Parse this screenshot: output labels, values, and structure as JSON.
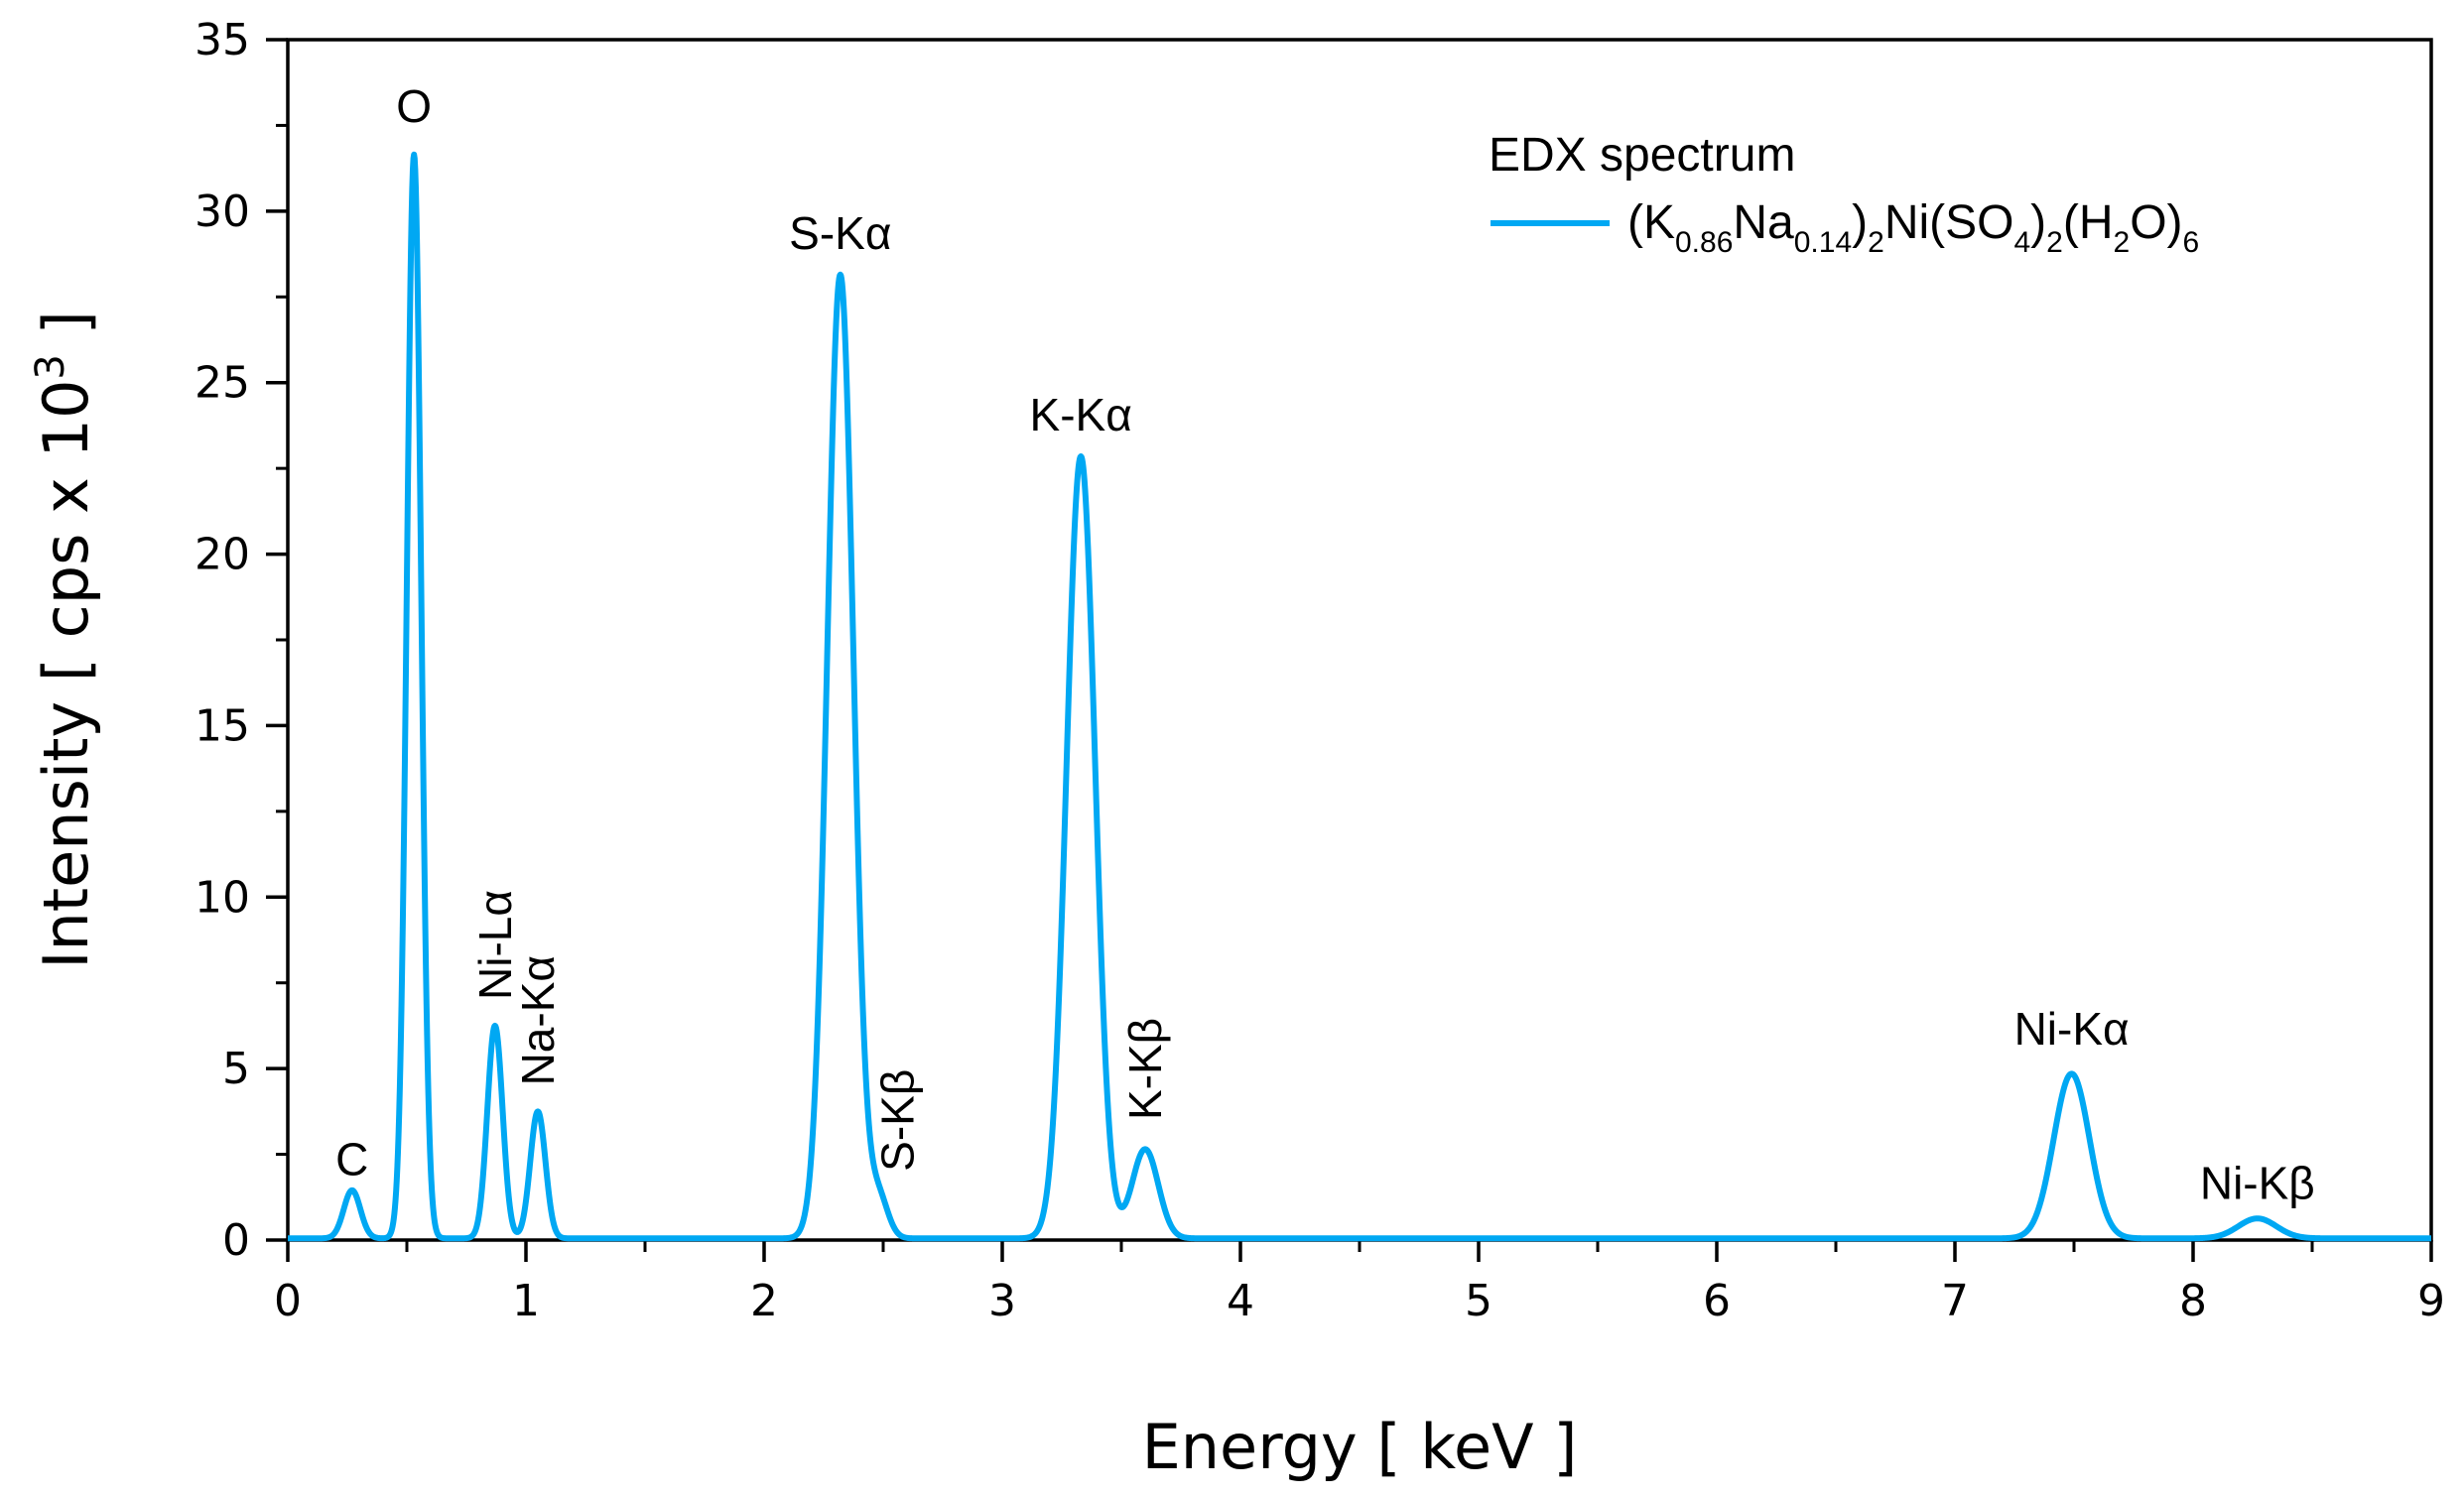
{
  "chart_data": {
    "type": "line",
    "xlabel": "Energy [ keV ]",
    "ylabel": "Intensity [ cps x 10",
    "ylabel_sup": "3",
    "ylabel_end": " ]",
    "xlim": [
      0,
      9
    ],
    "ylim": [
      0,
      35
    ],
    "x_ticks": [
      "0",
      "1",
      "2",
      "3",
      "4",
      "5",
      "6",
      "7",
      "8",
      "9"
    ],
    "y_ticks": [
      "0",
      "5",
      "10",
      "15",
      "20",
      "25",
      "30",
      "35"
    ],
    "grid": false,
    "legend": {
      "title": "EDX spectrum",
      "placement": "top-right",
      "entry": {
        "parts": [
          {
            "t": "(K",
            "s": ""
          },
          {
            "t": "0.86",
            "s": "sub"
          },
          {
            "t": "Na",
            "s": ""
          },
          {
            "t": "0.14",
            "s": "sub"
          },
          {
            "t": ")",
            "s": ""
          },
          {
            "t": "2",
            "s": "sub"
          },
          {
            "t": "Ni(SO",
            "s": ""
          },
          {
            "t": "4",
            "s": "sub"
          },
          {
            "t": ")",
            "s": ""
          },
          {
            "t": "2",
            "s": "sub"
          },
          {
            "t": "(H",
            "s": ""
          },
          {
            "t": "2",
            "s": "sub"
          },
          {
            "t": "O)",
            "s": ""
          },
          {
            "t": "6",
            "s": "sub"
          }
        ]
      }
    },
    "series": [
      {
        "color": "#00a8f3",
        "baseline": 0.05,
        "peaks": [
          {
            "x": 0.27,
            "height": 1.4,
            "sigma": 0.035
          },
          {
            "x": 0.53,
            "height": 31.6,
            "sigma": 0.03
          },
          {
            "x": 0.87,
            "height": 6.2,
            "sigma": 0.032
          },
          {
            "x": 1.05,
            "height": 3.7,
            "sigma": 0.032
          },
          {
            "x": 2.32,
            "height": 28.1,
            "sigma": 0.055
          },
          {
            "x": 2.48,
            "height": 1.2,
            "sigma": 0.04
          },
          {
            "x": 3.33,
            "height": 22.8,
            "sigma": 0.06
          },
          {
            "x": 3.6,
            "height": 2.6,
            "sigma": 0.055
          },
          {
            "x": 7.49,
            "height": 4.8,
            "sigma": 0.075
          },
          {
            "x": 8.27,
            "height": 0.58,
            "sigma": 0.08
          }
        ]
      }
    ],
    "annotations": [
      {
        "text": "C",
        "x": 0.27,
        "y": 1.9,
        "rotate": false
      },
      {
        "text": "O",
        "x": 0.53,
        "y": 32.6,
        "rotate": false
      },
      {
        "text": "Ni-Lα",
        "x": 0.87,
        "y": 7.0,
        "rotate": true
      },
      {
        "text": "Na-Kα",
        "x": 1.05,
        "y": 4.5,
        "rotate": true
      },
      {
        "text": "S-Kα",
        "x": 2.32,
        "y": 28.9,
        "rotate": false
      },
      {
        "text": "S-Kβ",
        "x": 2.56,
        "y": 2.0,
        "rotate": true
      },
      {
        "text": "K-Kα",
        "x": 3.33,
        "y": 23.6,
        "rotate": false
      },
      {
        "text": "K-Kβ",
        "x": 3.6,
        "y": 3.5,
        "rotate": true
      },
      {
        "text": "Ni-Kα",
        "x": 7.49,
        "y": 5.7,
        "rotate": false
      },
      {
        "text": "Ni-Kβ",
        "x": 8.27,
        "y": 1.2,
        "rotate": false
      }
    ]
  }
}
